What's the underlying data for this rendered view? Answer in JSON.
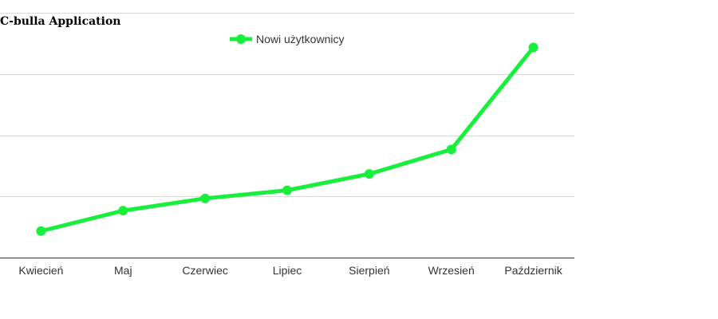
{
  "chart_data": {
    "type": "line",
    "title": "C-bulla Application",
    "xlabel": "",
    "ylabel": "",
    "categories": [
      "Kwiecień",
      "Maj",
      "Czerwiec",
      "Lipiec",
      "Sierpień",
      "Wrzesień",
      "Październik"
    ],
    "series": [
      {
        "name": "Nowi użytkownicy",
        "values": [
          13,
          23,
          29,
          33,
          41,
          53,
          103
        ],
        "color": "#18ee3c"
      }
    ],
    "ylim": [
      0,
      120
    ],
    "y_gridlines": [
      30,
      60,
      90,
      120
    ],
    "y_tick_labels_visible": false,
    "grid": true,
    "legend_position": "top-center",
    "colors": {
      "series": "#18ee3c",
      "grid": "#d9d9d9",
      "axis": "#333333",
      "text": "#333333"
    }
  }
}
